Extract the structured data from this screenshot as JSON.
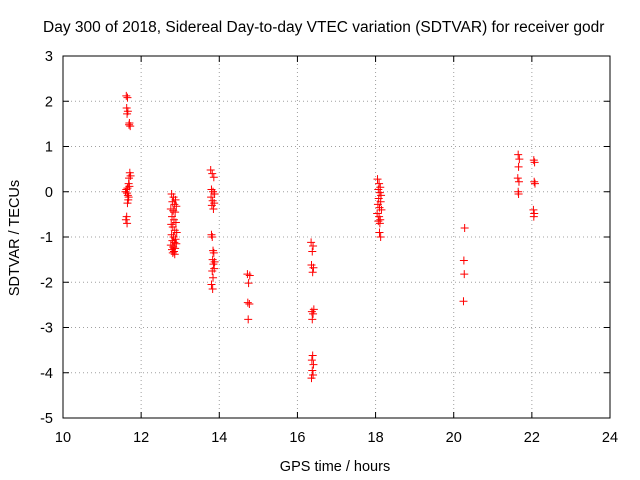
{
  "chart_data": {
    "type": "scatter",
    "title": "Day 300 of 2018, Sidereal Day-to-day VTEC variation (SDTVAR) for receiver godr",
    "xlabel": "GPS time / hours",
    "ylabel": "SDTVAR / TECUs",
    "xlim": [
      10,
      24
    ],
    "ylim": [
      -5,
      3
    ],
    "xticks": [
      10,
      12,
      14,
      16,
      18,
      20,
      22,
      24
    ],
    "yticks": [
      -5,
      -4,
      -3,
      -2,
      -1,
      0,
      1,
      2,
      3
    ],
    "xtick_labels": [
      "10",
      "12",
      "14",
      "16",
      "18",
      "20",
      "22",
      "24"
    ],
    "ytick_labels": [
      "-5",
      "-4",
      "-3",
      "-2",
      "-1",
      "0",
      "1",
      "2",
      "3"
    ],
    "grid": true,
    "marker": "+",
    "color": "#ff0000",
    "series": [
      {
        "name": "SDTVAR",
        "points": [
          [
            11.62,
            2.12
          ],
          [
            11.65,
            2.08
          ],
          [
            11.63,
            1.85
          ],
          [
            11.66,
            1.78
          ],
          [
            11.64,
            1.72
          ],
          [
            11.7,
            1.52
          ],
          [
            11.72,
            1.45
          ],
          [
            11.69,
            1.48
          ],
          [
            11.71,
            0.42
          ],
          [
            11.73,
            0.35
          ],
          [
            11.69,
            0.3
          ],
          [
            11.68,
            0.18
          ],
          [
            11.7,
            0.12
          ],
          [
            11.65,
            0.08
          ],
          [
            11.62,
            0.05
          ],
          [
            11.6,
            0.0
          ],
          [
            11.64,
            -0.03
          ],
          [
            11.66,
            -0.08
          ],
          [
            11.68,
            -0.12
          ],
          [
            11.67,
            -0.18
          ],
          [
            11.65,
            -0.25
          ],
          [
            11.63,
            -0.55
          ],
          [
            11.61,
            -0.62
          ],
          [
            11.64,
            -0.7
          ],
          [
            12.78,
            -0.05
          ],
          [
            12.83,
            -0.12
          ],
          [
            12.88,
            -0.18
          ],
          [
            12.8,
            -0.22
          ],
          [
            12.85,
            -0.28
          ],
          [
            12.9,
            -0.32
          ],
          [
            12.76,
            -0.38
          ],
          [
            12.82,
            -0.42
          ],
          [
            12.87,
            -0.45
          ],
          [
            12.79,
            -0.55
          ],
          [
            12.84,
            -0.62
          ],
          [
            12.89,
            -0.68
          ],
          [
            12.77,
            -0.72
          ],
          [
            12.81,
            -0.78
          ],
          [
            12.86,
            -0.85
          ],
          [
            12.91,
            -0.9
          ],
          [
            12.78,
            -0.95
          ],
          [
            12.83,
            -1.0
          ],
          [
            12.88,
            -1.05
          ],
          [
            12.8,
            -1.08
          ],
          [
            12.85,
            -1.12
          ],
          [
            12.9,
            -1.15
          ],
          [
            12.76,
            -1.18
          ],
          [
            12.82,
            -1.22
          ],
          [
            12.87,
            -1.25
          ],
          [
            12.79,
            -1.28
          ],
          [
            12.84,
            -1.32
          ],
          [
            12.81,
            -1.35
          ],
          [
            12.86,
            -1.38
          ],
          [
            13.78,
            0.48
          ],
          [
            13.82,
            0.4
          ],
          [
            13.86,
            0.32
          ],
          [
            13.8,
            0.05
          ],
          [
            13.84,
            0.0
          ],
          [
            13.88,
            -0.05
          ],
          [
            13.79,
            -0.12
          ],
          [
            13.83,
            -0.2
          ],
          [
            13.87,
            -0.25
          ],
          [
            13.81,
            -0.3
          ],
          [
            13.85,
            -0.38
          ],
          [
            13.8,
            -0.95
          ],
          [
            13.82,
            -1.0
          ],
          [
            13.84,
            -1.3
          ],
          [
            13.86,
            -1.35
          ],
          [
            13.83,
            -1.5
          ],
          [
            13.88,
            -1.55
          ],
          [
            13.85,
            -1.6
          ],
          [
            13.87,
            -1.7
          ],
          [
            13.82,
            -1.75
          ],
          [
            13.84,
            -1.9
          ],
          [
            13.8,
            -2.05
          ],
          [
            13.83,
            -2.15
          ],
          [
            14.72,
            -1.82
          ],
          [
            14.78,
            -1.85
          ],
          [
            14.75,
            -2.02
          ],
          [
            14.73,
            -2.45
          ],
          [
            14.77,
            -2.48
          ],
          [
            14.74,
            -2.82
          ],
          [
            16.35,
            -1.12
          ],
          [
            16.4,
            -1.2
          ],
          [
            16.38,
            -1.32
          ],
          [
            16.36,
            -1.62
          ],
          [
            16.41,
            -1.68
          ],
          [
            16.39,
            -1.78
          ],
          [
            16.42,
            -2.6
          ],
          [
            16.37,
            -2.65
          ],
          [
            16.4,
            -2.7
          ],
          [
            16.38,
            -2.82
          ],
          [
            16.39,
            -3.62
          ],
          [
            16.37,
            -3.72
          ],
          [
            16.41,
            -3.82
          ],
          [
            16.38,
            -3.95
          ],
          [
            16.4,
            -4.05
          ],
          [
            16.36,
            -4.12
          ],
          [
            18.05,
            0.28
          ],
          [
            18.09,
            0.18
          ],
          [
            18.12,
            0.1
          ],
          [
            18.07,
            0.05
          ],
          [
            18.11,
            -0.02
          ],
          [
            18.14,
            -0.08
          ],
          [
            18.08,
            -0.15
          ],
          [
            18.13,
            -0.22
          ],
          [
            18.06,
            -0.28
          ],
          [
            18.1,
            -0.35
          ],
          [
            18.15,
            -0.4
          ],
          [
            18.04,
            -0.48
          ],
          [
            18.09,
            -0.55
          ],
          [
            18.12,
            -0.62
          ],
          [
            18.07,
            -0.65
          ],
          [
            18.11,
            -0.7
          ],
          [
            18.1,
            -0.9
          ],
          [
            18.13,
            -1.0
          ],
          [
            20.28,
            -0.8
          ],
          [
            20.26,
            -1.52
          ],
          [
            20.27,
            -1.82
          ],
          [
            20.25,
            -2.42
          ],
          [
            21.65,
            0.82
          ],
          [
            21.68,
            0.72
          ],
          [
            21.66,
            0.55
          ],
          [
            21.64,
            0.3
          ],
          [
            21.67,
            0.22
          ],
          [
            21.65,
            0.0
          ],
          [
            21.66,
            -0.05
          ],
          [
            22.05,
            0.7
          ],
          [
            22.07,
            0.65
          ],
          [
            22.06,
            0.22
          ],
          [
            22.08,
            0.18
          ],
          [
            22.04,
            -0.4
          ],
          [
            22.06,
            -0.48
          ],
          [
            22.05,
            -0.55
          ]
        ]
      }
    ]
  }
}
